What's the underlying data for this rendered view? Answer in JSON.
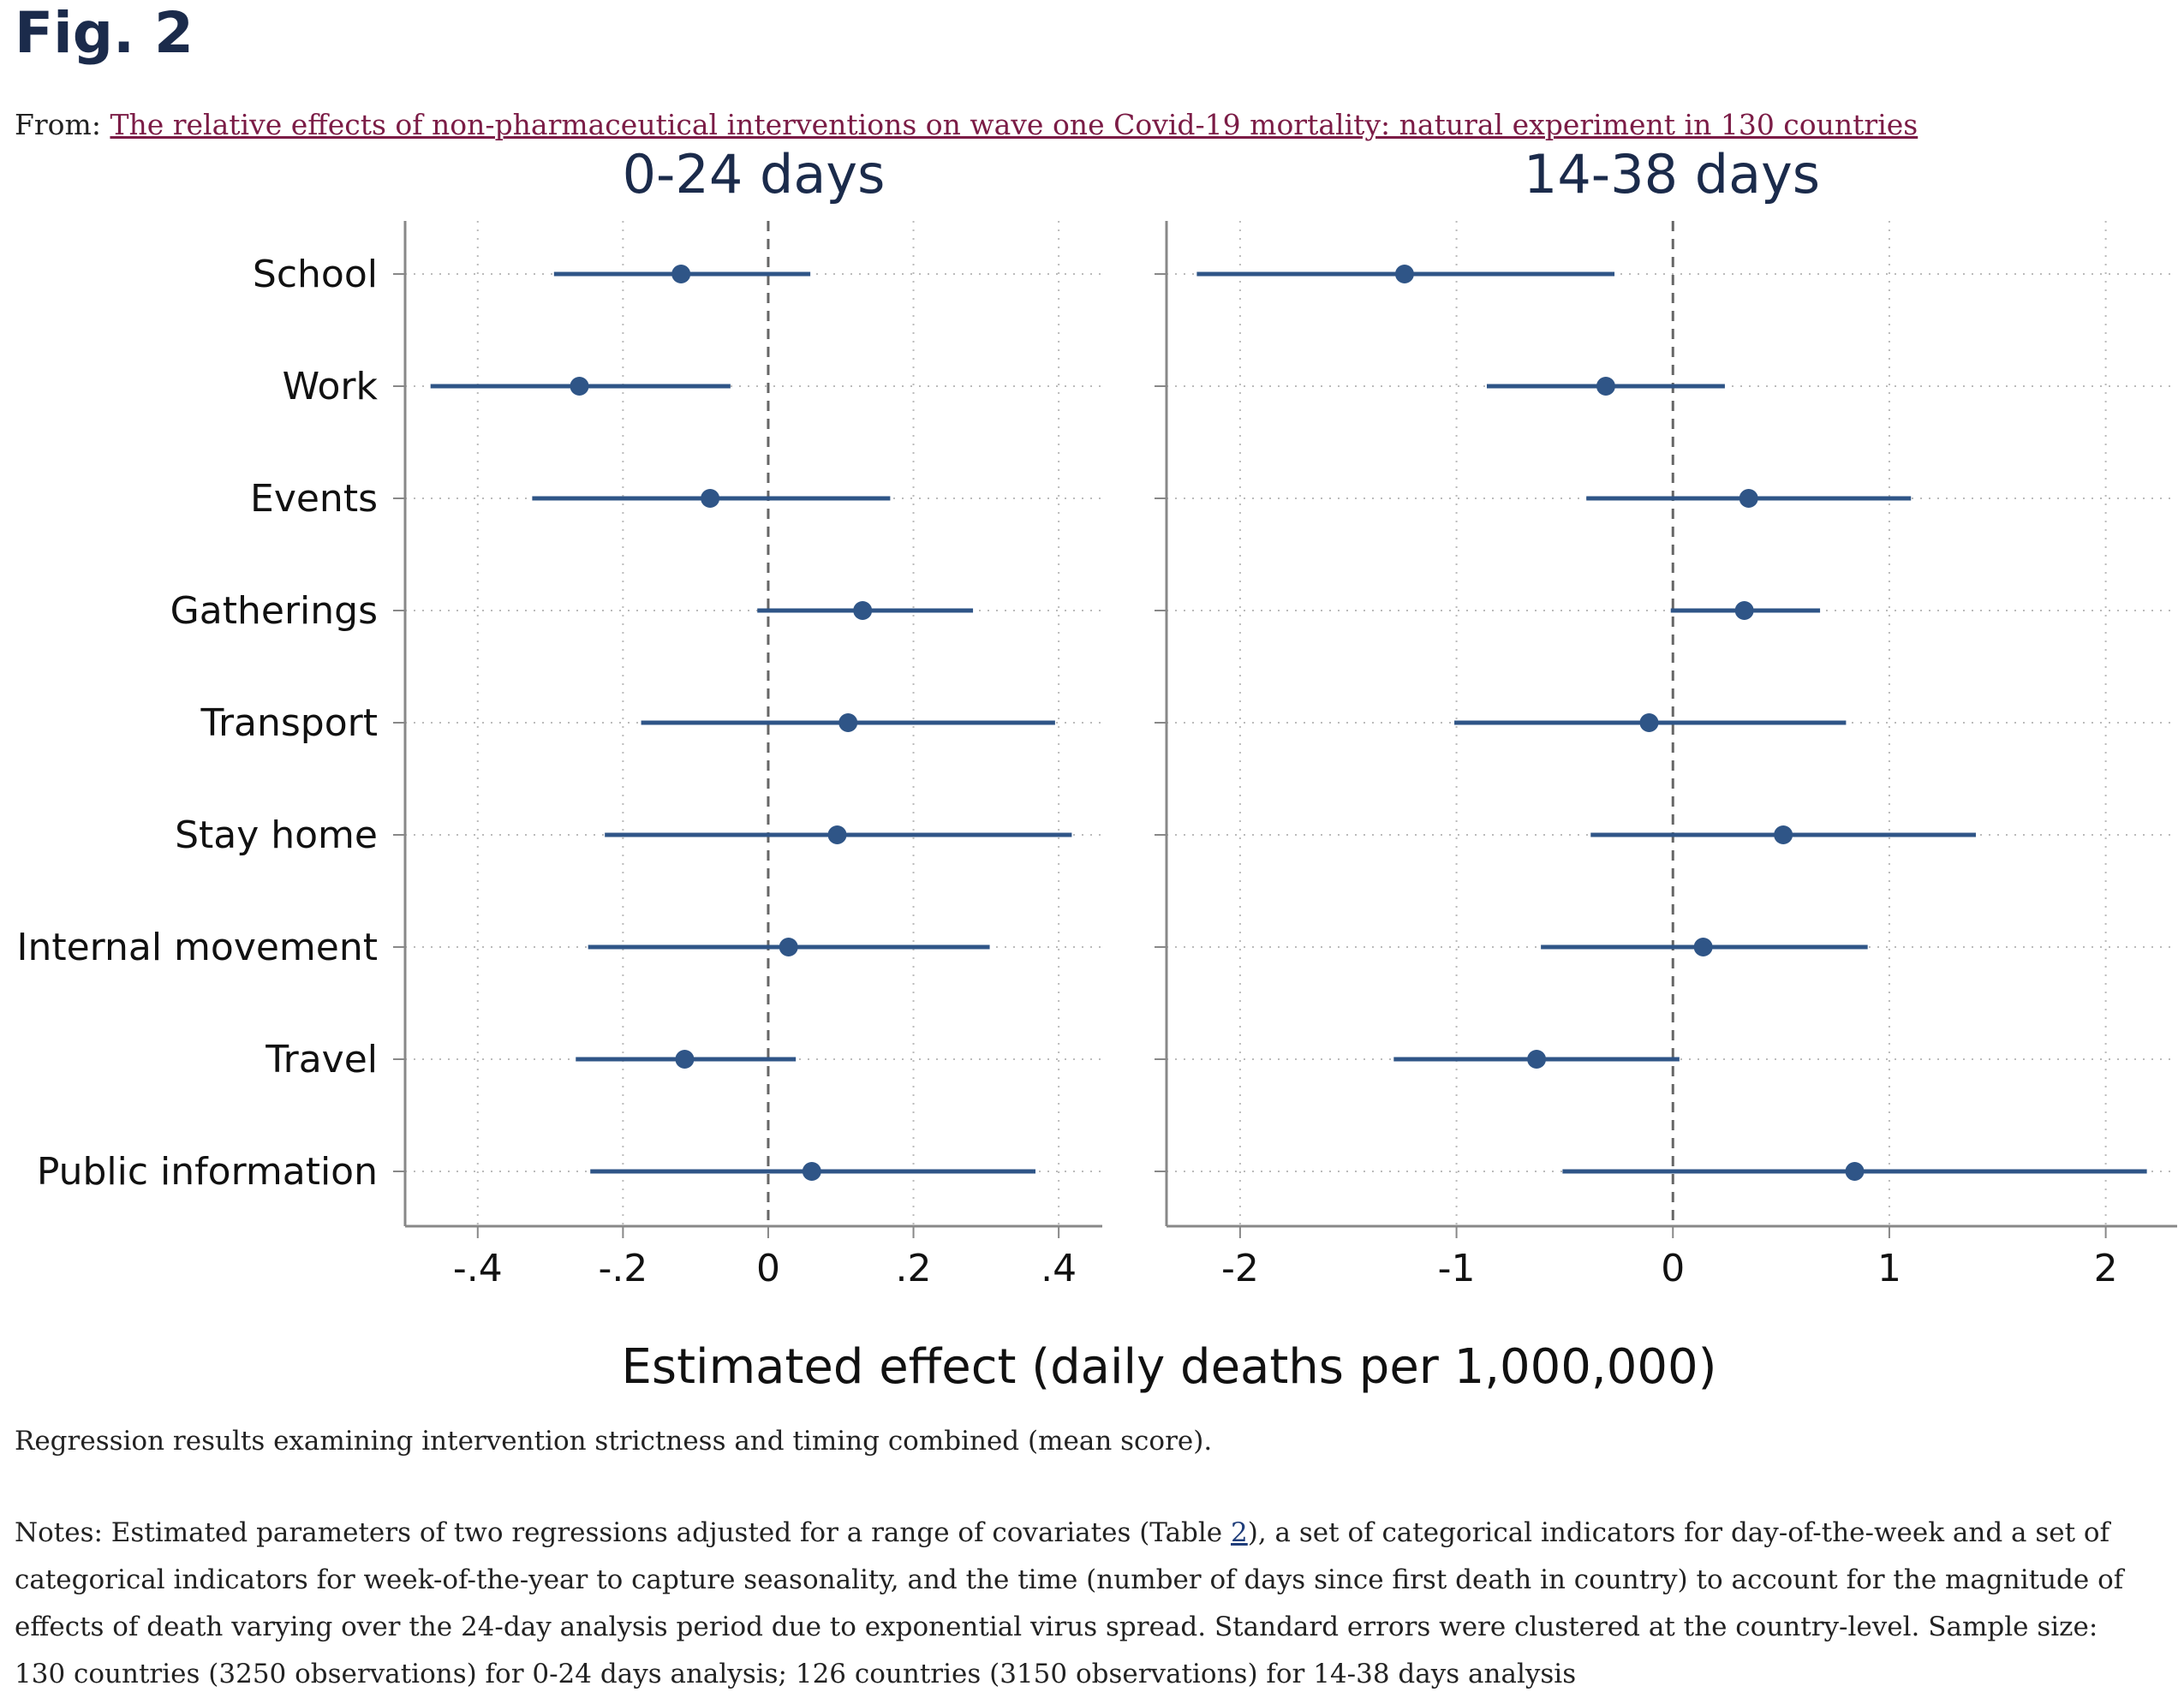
{
  "figure": {
    "title": "Fig. 2",
    "from_prefix": "From:",
    "from_link": "The relative effects of non-pharmaceutical interventions on wave one Covid-19 mortality: natural experiment in 130 countries",
    "caption": "Regression results examining intervention strictness and timing combined (mean score).",
    "notes_before_link": "Notes: Estimated parameters of two regressions adjusted for a range of covariates (Table ",
    "notes_link": "2",
    "notes_after_link": "), a set of categorical indicators for day-of-the-week and a set of categorical indicators for week-of-the-year to capture seasonality, and the time (number of days since first death in country) to account for the magnitude of effects of death varying over the 24-day analysis period due to exponential virus spread. Standard errors were clustered at the country-level. Sample size: 130 countries (3250 observations) for 0-24 days analysis; 126 countries (3150 observations) for 14-38 days analysis"
  },
  "colors": {
    "marker": "#2f5587",
    "title_navy": "#1b2b4b",
    "link": "#7b1c46",
    "axis": "#888888"
  },
  "chart_data": [
    {
      "type": "scatter",
      "subtype": "coefficient-plot",
      "title": "0-24 days",
      "xlabel": "Estimated effect (daily deaths per 1,000,000)",
      "categories": [
        "School",
        "Work",
        "Events",
        "Gatherings",
        "Transport",
        "Stay home",
        "Internal movement",
        "Travel",
        "Public information"
      ],
      "estimates": [
        -0.12,
        -0.26,
        -0.08,
        0.13,
        0.11,
        0.095,
        0.028,
        -0.115,
        0.06
      ],
      "ci_lower": [
        -0.295,
        -0.465,
        -0.325,
        -0.015,
        -0.175,
        -0.225,
        -0.248,
        -0.265,
        -0.245
      ],
      "ci_upper": [
        0.058,
        -0.052,
        0.168,
        0.282,
        0.395,
        0.418,
        0.305,
        0.038,
        0.368
      ],
      "xlim": [
        -0.5,
        0.46
      ],
      "xticks": [
        -0.4,
        -0.2,
        0,
        0.2,
        0.4
      ],
      "xtick_labels": [
        "-.4",
        "-.2",
        "0",
        ".2",
        ".4"
      ],
      "reference_line": 0,
      "grid": true
    },
    {
      "type": "scatter",
      "subtype": "coefficient-plot",
      "title": "14-38 days",
      "xlabel": "Estimated effect (daily deaths per 1,000,000)",
      "categories": [
        "School",
        "Work",
        "Events",
        "Gatherings",
        "Transport",
        "Stay home",
        "Internal movement",
        "Travel",
        "Public information"
      ],
      "estimates": [
        -1.24,
        -0.31,
        0.35,
        0.33,
        -0.11,
        0.51,
        0.14,
        -0.63,
        0.84
      ],
      "ci_lower": [
        -2.2,
        -0.86,
        -0.4,
        -0.01,
        -1.01,
        -0.38,
        -0.61,
        -1.29,
        -0.51
      ],
      "ci_upper": [
        -0.27,
        0.24,
        1.1,
        0.68,
        0.8,
        1.4,
        0.9,
        0.03,
        2.19
      ],
      "xlim": [
        -2.34,
        2.33
      ],
      "xticks": [
        -2,
        -1,
        0,
        1,
        2
      ],
      "xtick_labels": [
        "-2",
        "-1",
        "0",
        "1",
        "2"
      ],
      "reference_line": 0,
      "grid": true
    }
  ]
}
